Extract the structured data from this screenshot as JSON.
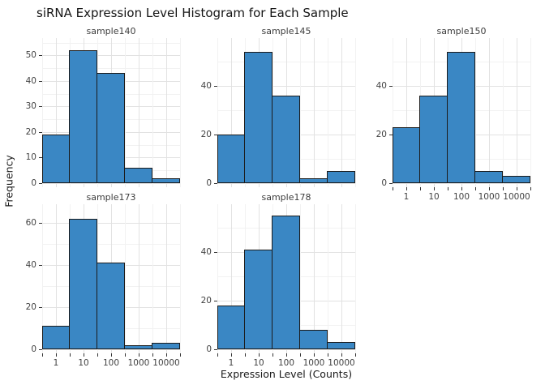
{
  "title": "siRNA Expression Level Histogram for Each Sample",
  "x_axis_title": "Expression Level (Counts)",
  "y_axis_title": "Frequency",
  "colors": {
    "bar_fill": "#3a87c4",
    "bar_edge": "#1b1b1b",
    "grid_major": "#e2e2e2",
    "grid_minor": "#f2f2f2",
    "tick_text": "#424242",
    "background": "#ffffff"
  },
  "chart_data": {
    "type": "bar",
    "subtype": "faceted-histogram",
    "title": "siRNA Expression Level Histogram for Each Sample",
    "xlabel": "Expression Level (Counts)",
    "ylabel": "Frequency",
    "x_scale": "log10",
    "grid": true,
    "legend": "none",
    "categories": [
      "1",
      "10",
      "100",
      "1000",
      "10000"
    ],
    "panels": [
      {
        "label": "sample140",
        "values": [
          19,
          52,
          43,
          6,
          2
        ],
        "yticks": [
          0,
          10,
          20,
          30,
          40,
          50
        ],
        "yminor": [
          5,
          15,
          25,
          35,
          45,
          55
        ],
        "ylim": [
          0,
          56.8
        ],
        "show_x_labels": false
      },
      {
        "label": "sample145",
        "values": [
          20,
          54,
          36,
          2,
          5
        ],
        "yticks": [
          0,
          20,
          40
        ],
        "yminor": [
          10,
          30,
          50
        ],
        "ylim": [
          0,
          59.7
        ],
        "show_x_labels": false
      },
      {
        "label": "sample150",
        "values": [
          23,
          36,
          54,
          5,
          3
        ],
        "yticks": [
          0,
          20,
          40
        ],
        "yminor": [
          10,
          30,
          50
        ],
        "ylim": [
          0,
          59.7
        ],
        "show_x_labels": true
      },
      {
        "label": "sample173",
        "values": [
          11,
          62,
          41,
          2,
          3
        ],
        "yticks": [
          0,
          20,
          40,
          60
        ],
        "yminor": [
          10,
          30,
          50
        ],
        "ylim": [
          0,
          68.8
        ],
        "show_x_labels": true
      },
      {
        "label": "sample178",
        "values": [
          18,
          41,
          55,
          8,
          3
        ],
        "yticks": [
          0,
          20,
          40
        ],
        "yminor": [
          10,
          30,
          50
        ],
        "ylim": [
          0,
          59.7
        ],
        "show_x_labels": true
      }
    ]
  }
}
